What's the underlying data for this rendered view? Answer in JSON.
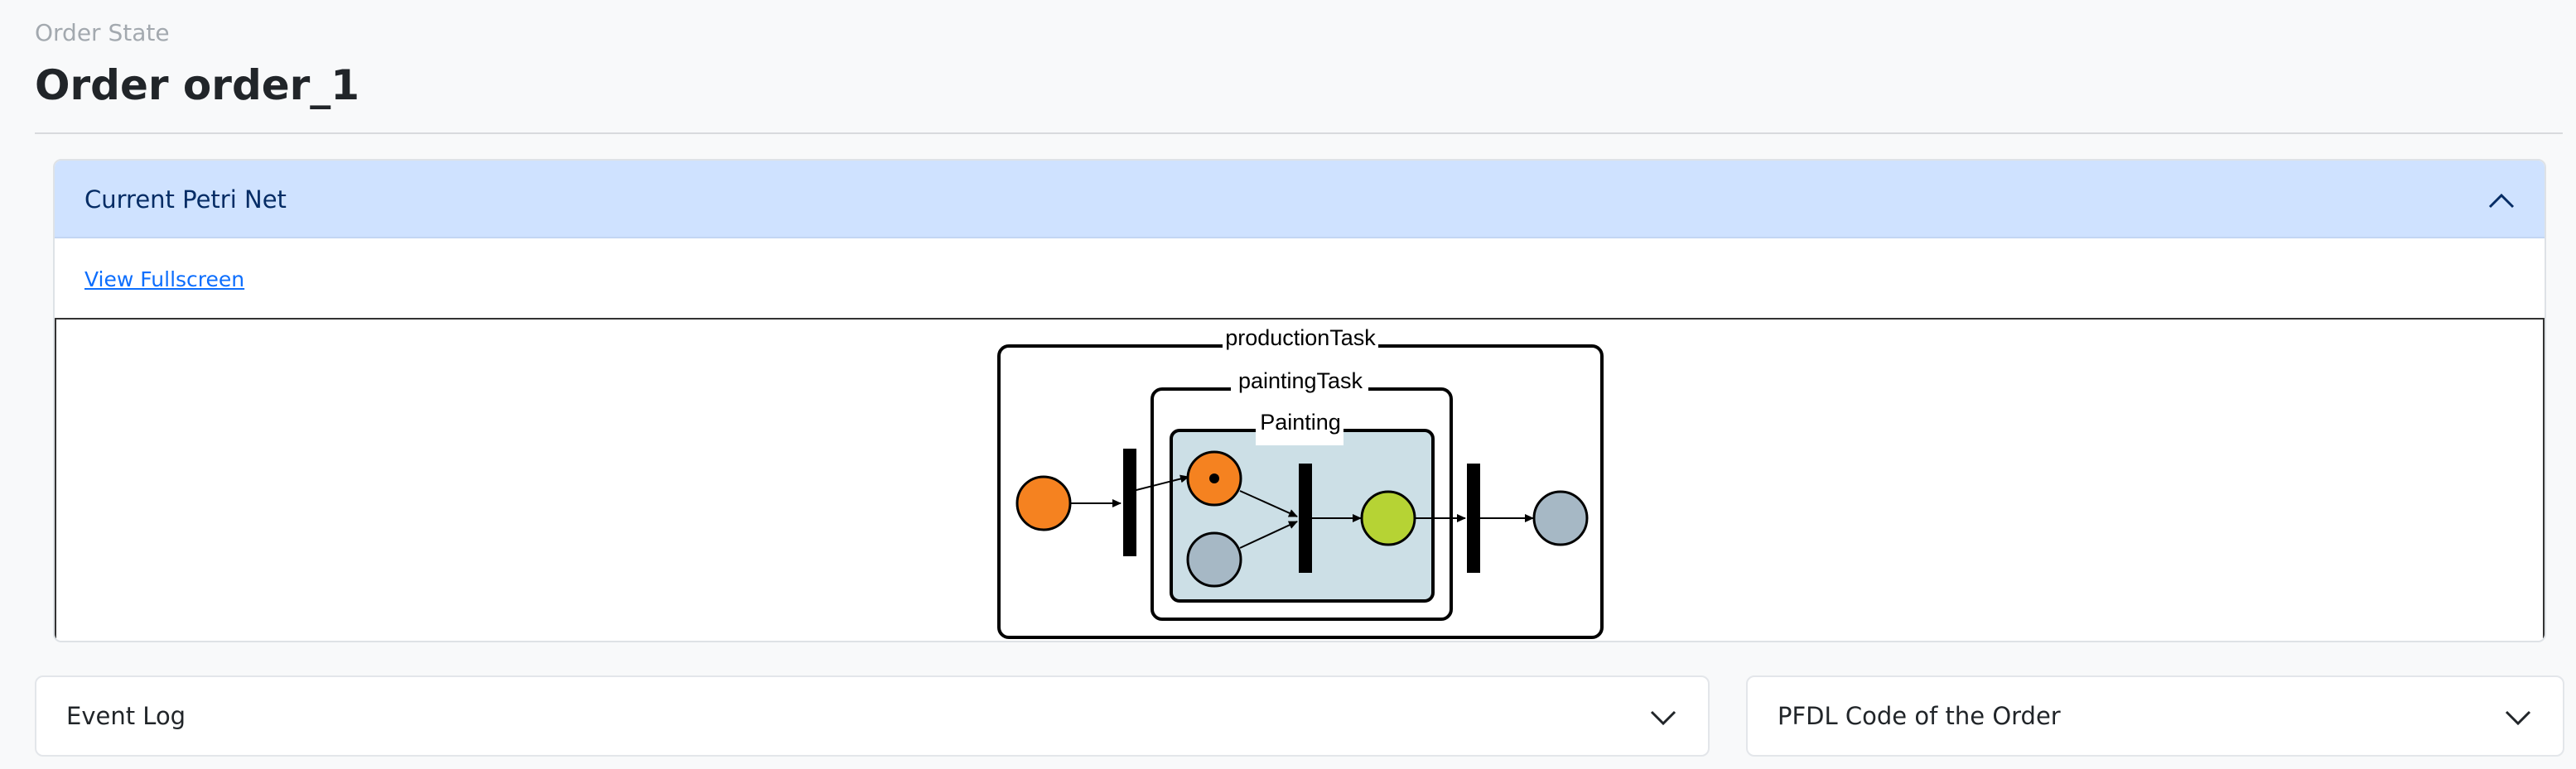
{
  "header": {
    "subtitle": "Order State",
    "title": "Order order_1"
  },
  "petri_panel": {
    "title": "Current Petri Net",
    "expanded": true,
    "fullscreen_link": "View Fullscreen",
    "net": {
      "groups": [
        "productionTask",
        "paintingTask",
        "Painting"
      ],
      "colors": {
        "active_place": "#f58220",
        "idle_place": "#a6b8c5",
        "done_place": "#b6d334",
        "painting_fill": "#ccdfe6",
        "transition": "#000000"
      }
    }
  },
  "event_log_panel": {
    "title": "Event Log",
    "expanded": false
  },
  "pfdl_panel": {
    "title": "PFDL Code of the Order",
    "expanded": false
  }
}
